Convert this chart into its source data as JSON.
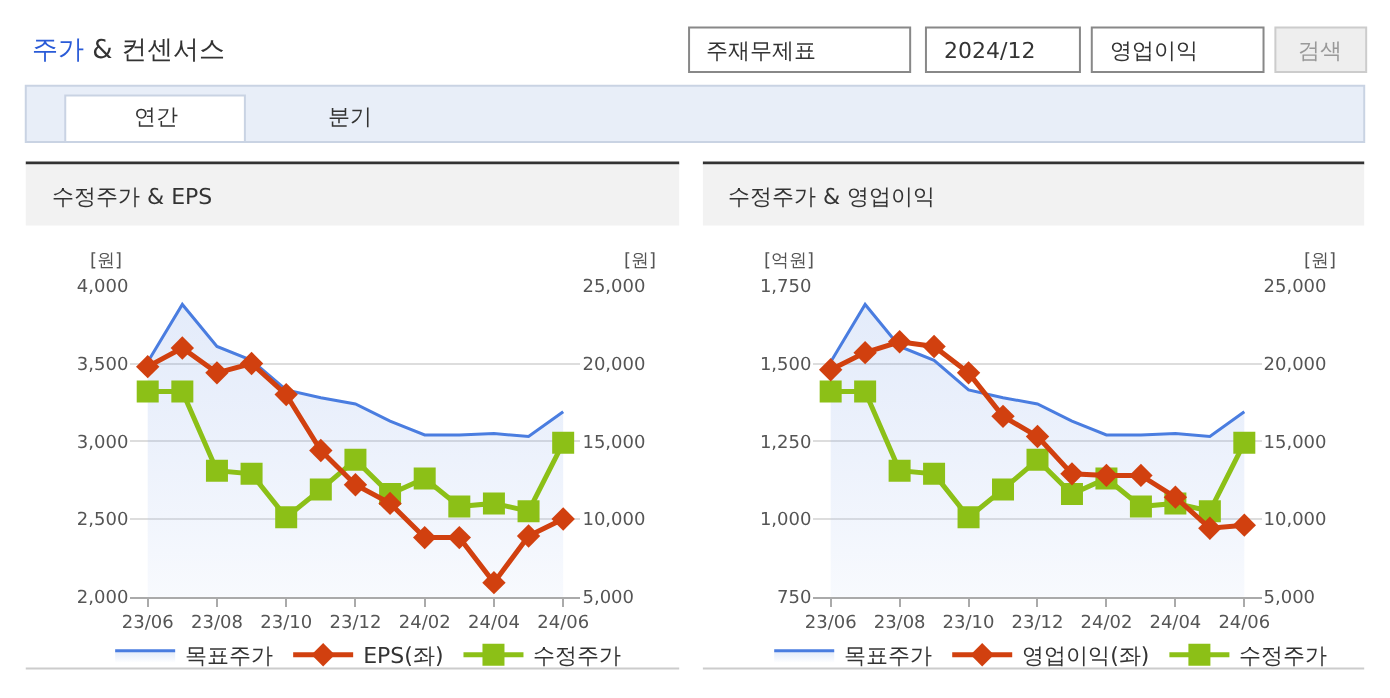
{
  "chart_data": [
    {
      "type": "other",
      "title": "주가 & 컨센서스",
      "annotations": [
        "주재무제표",
        "2024/12",
        "영업이익",
        "검색",
        "연간",
        "분기"
      ]
    },
    {
      "type": "line",
      "title": "수정주가 & EPS",
      "ylabel": "[원]",
      "y2label": "[원]",
      "categories": [
        "23/06",
        null,
        "23/08",
        null,
        "23/10",
        null,
        "23/12",
        null,
        "24/02",
        null,
        "24/04",
        null,
        "24/06"
      ],
      "ylim": [
        2000,
        4000
      ],
      "yticks": [
        {
          "value": 2000,
          "label": "2,000"
        },
        {
          "value": 2500,
          "label": "2,500"
        },
        {
          "value": 3000,
          "label": "3,000"
        },
        {
          "value": 3500,
          "label": "3,500"
        },
        {
          "value": 4000,
          "label": "4,000"
        }
      ],
      "y2lim": [
        5000,
        25000
      ],
      "y2ticks": [
        {
          "value": 5000,
          "label": "5,000"
        },
        {
          "value": 10000,
          "label": "10,000"
        },
        {
          "value": 15000,
          "label": "15,000"
        },
        {
          "value": 20000,
          "label": "20,000"
        },
        {
          "value": 25000,
          "label": "25,000"
        }
      ],
      "grid": "y",
      "legend": "bottom",
      "series": [
        {
          "name": "목표주가",
          "type": "area",
          "axis": "y2",
          "color": "#4a7de0",
          "marker": "none",
          "values": [
            20100,
            23800,
            21100,
            20200,
            18300,
            17800,
            17400,
            16300,
            15400,
            15400,
            15500,
            15300,
            16900
          ]
        },
        {
          "name": "EPS(좌)",
          "type": "line",
          "color": "#d1400f",
          "marker": "diamond",
          "values": [
            3480,
            3600,
            3440,
            3500,
            3300,
            2940,
            2720,
            2600,
            2380,
            2380,
            2090,
            2390,
            2500
          ]
        },
        {
          "name": "수정주가",
          "type": "line",
          "axis": "y2",
          "color": "#8cc017",
          "marker": "square",
          "values": [
            18200,
            18200,
            13100,
            12900,
            10100,
            11900,
            13800,
            11600,
            12600,
            10800,
            11000,
            10500,
            14900
          ]
        }
      ]
    },
    {
      "type": "line",
      "title": "수정주가 & 영업이익",
      "ylabel": "[억원]",
      "y2label": "[원]",
      "categories": [
        "23/06",
        null,
        "23/08",
        null,
        "23/10",
        null,
        "23/12",
        null,
        "24/02",
        null,
        "24/04",
        null,
        "24/06"
      ],
      "ylim": [
        750,
        1750
      ],
      "yticks": [
        750,
        {
          "value": 1000,
          "label": "1,000"
        },
        {
          "value": 1250,
          "label": "1,250"
        },
        {
          "value": 1500,
          "label": "1,500"
        },
        {
          "value": 1750,
          "label": "1,750"
        }
      ],
      "y2lim": [
        5000,
        25000
      ],
      "y2ticks": [
        {
          "value": 5000,
          "label": "5,000"
        },
        {
          "value": 10000,
          "label": "10,000"
        },
        {
          "value": 15000,
          "label": "15,000"
        },
        {
          "value": 20000,
          "label": "20,000"
        },
        {
          "value": 25000,
          "label": "25,000"
        }
      ],
      "grid": "y",
      "legend": "bottom",
      "series": [
        {
          "name": "목표주가",
          "type": "area",
          "axis": "y2",
          "color": "#4a7de0",
          "marker": "none",
          "values": [
            20100,
            23800,
            21100,
            20200,
            18300,
            17800,
            17400,
            16300,
            15400,
            15400,
            15500,
            15300,
            16900
          ]
        },
        {
          "name": "영업이익(좌)",
          "type": "line",
          "color": "#d1400f",
          "marker": "diamond",
          "values": [
            1480,
            1535,
            1570,
            1555,
            1470,
            1330,
            1265,
            1145,
            1140,
            1140,
            1070,
            970,
            980
          ]
        },
        {
          "name": "수정주가",
          "type": "line",
          "axis": "y2",
          "color": "#8cc017",
          "marker": "square",
          "values": [
            18200,
            18200,
            13100,
            12900,
            10100,
            11900,
            13800,
            11600,
            12600,
            10800,
            11000,
            10500,
            14900
          ]
        }
      ]
    }
  ]
}
